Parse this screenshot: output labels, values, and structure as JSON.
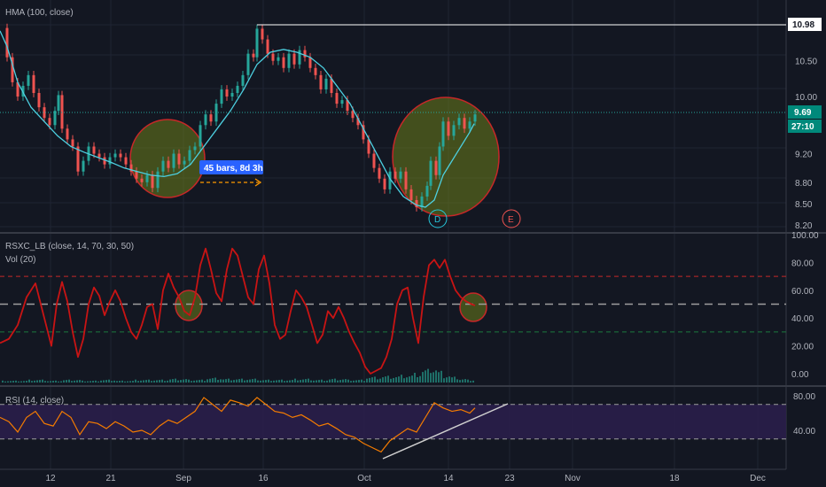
{
  "chart_data": [
    {
      "type": "candlestick",
      "pane": "price",
      "indicator_label": "HMA (100, close)",
      "y_ticks": [
        "8.20",
        "8.50",
        "8.80",
        "9.20",
        "10.00",
        "10.50"
      ],
      "x_ticks": [
        "12",
        "21",
        "Sep",
        "16",
        "Oct",
        "14",
        "23",
        "Nov",
        "18",
        "Dec"
      ],
      "price_high_tag": "10.98",
      "last_price_tag": "9.69",
      "countdown_tag": "27:10",
      "measure_label": "45 bars, 8d 3h",
      "markers": [
        "D",
        "E"
      ],
      "hma_points": [
        [
          0,
          10.92
        ],
        [
          8,
          10.7
        ],
        [
          20,
          10.2
        ],
        [
          35,
          9.85
        ],
        [
          50,
          9.65
        ],
        [
          65,
          9.45
        ],
        [
          80,
          9.3
        ],
        [
          95,
          9.22
        ],
        [
          110,
          9.15
        ],
        [
          125,
          9.08
        ],
        [
          140,
          9.0
        ],
        [
          155,
          8.95
        ],
        [
          170,
          8.9
        ],
        [
          185,
          8.88
        ],
        [
          200,
          8.92
        ],
        [
          215,
          9.05
        ],
        [
          230,
          9.3
        ],
        [
          245,
          9.55
        ],
        [
          260,
          9.8
        ],
        [
          275,
          10.1
        ],
        [
          290,
          10.45
        ],
        [
          305,
          10.62
        ],
        [
          320,
          10.66
        ],
        [
          335,
          10.62
        ],
        [
          350,
          10.55
        ],
        [
          365,
          10.4
        ],
        [
          380,
          10.15
        ],
        [
          395,
          9.9
        ],
        [
          410,
          9.55
        ],
        [
          425,
          9.2
        ],
        [
          440,
          8.85
        ],
        [
          455,
          8.6
        ],
        [
          470,
          8.48
        ],
        [
          480,
          8.45
        ],
        [
          490,
          8.55
        ],
        [
          500,
          8.9
        ],
        [
          515,
          9.2
        ],
        [
          530,
          9.5
        ],
        [
          535,
          9.62
        ]
      ],
      "close_points": [
        [
          2,
          10.96
        ],
        [
          8,
          10.55
        ],
        [
          14,
          10.2
        ],
        [
          20,
          10.0
        ],
        [
          26,
          10.15
        ],
        [
          32,
          10.3
        ],
        [
          38,
          10.05
        ],
        [
          44,
          9.85
        ],
        [
          50,
          9.7
        ],
        [
          56,
          9.6
        ],
        [
          62,
          9.8
        ],
        [
          66,
          10.02
        ],
        [
          70,
          9.55
        ],
        [
          76,
          9.4
        ],
        [
          82,
          9.3
        ],
        [
          88,
          8.95
        ],
        [
          94,
          9.1
        ],
        [
          100,
          9.3
        ],
        [
          106,
          9.2
        ],
        [
          112,
          9.15
        ],
        [
          118,
          9.05
        ],
        [
          124,
          9.15
        ],
        [
          130,
          9.2
        ],
        [
          136,
          9.15
        ],
        [
          142,
          9.05
        ],
        [
          148,
          8.95
        ],
        [
          154,
          8.85
        ],
        [
          160,
          8.8
        ],
        [
          166,
          8.9
        ],
        [
          172,
          8.72
        ],
        [
          178,
          8.95
        ],
        [
          184,
          9.1
        ],
        [
          190,
          9.0
        ],
        [
          196,
          9.2
        ],
        [
          202,
          9.05
        ],
        [
          208,
          9.1
        ],
        [
          214,
          9.25
        ],
        [
          220,
          9.3
        ],
        [
          226,
          9.6
        ],
        [
          232,
          9.75
        ],
        [
          238,
          9.65
        ],
        [
          244,
          9.9
        ],
        [
          250,
          10.1
        ],
        [
          256,
          10.0
        ],
        [
          262,
          10.05
        ],
        [
          268,
          10.15
        ],
        [
          274,
          10.3
        ],
        [
          280,
          10.6
        ],
        [
          286,
          10.55
        ],
        [
          290,
          10.95
        ],
        [
          296,
          10.8
        ],
        [
          302,
          10.6
        ],
        [
          308,
          10.5
        ],
        [
          314,
          10.55
        ],
        [
          320,
          10.4
        ],
        [
          326,
          10.6
        ],
        [
          332,
          10.45
        ],
        [
          338,
          10.65
        ],
        [
          344,
          10.55
        ],
        [
          350,
          10.4
        ],
        [
          356,
          10.3
        ],
        [
          362,
          10.1
        ],
        [
          368,
          10.25
        ],
        [
          374,
          10.05
        ],
        [
          380,
          9.9
        ],
        [
          386,
          9.95
        ],
        [
          392,
          9.8
        ],
        [
          398,
          9.7
        ],
        [
          404,
          9.6
        ],
        [
          410,
          9.4
        ],
        [
          416,
          9.2
        ],
        [
          422,
          9.0
        ],
        [
          428,
          8.85
        ],
        [
          434,
          8.7
        ],
        [
          440,
          8.95
        ],
        [
          446,
          8.85
        ],
        [
          452,
          8.95
        ],
        [
          458,
          8.7
        ],
        [
          464,
          8.55
        ],
        [
          470,
          8.45
        ],
        [
          476,
          8.6
        ],
        [
          482,
          8.75
        ],
        [
          486,
          9.1
        ],
        [
          492,
          8.9
        ],
        [
          496,
          9.3
        ],
        [
          500,
          9.65
        ],
        [
          506,
          9.45
        ],
        [
          512,
          9.6
        ],
        [
          518,
          9.7
        ],
        [
          524,
          9.55
        ],
        [
          530,
          9.65
        ],
        [
          536,
          9.75
        ]
      ]
    },
    {
      "type": "line",
      "pane": "oscillator",
      "indicator_label": "RSXC_LB (close, 14, 70, 30, 50)",
      "volume_label": "Vol (20)",
      "y_ticks": [
        "100.00",
        "80.00",
        "60.00",
        "40.00",
        "20.00",
        "0.00"
      ],
      "levels": [
        70,
        50,
        30
      ],
      "values": [
        [
          0,
          22
        ],
        [
          10,
          25
        ],
        [
          20,
          35
        ],
        [
          30,
          55
        ],
        [
          40,
          65
        ],
        [
          46,
          50
        ],
        [
          52,
          35
        ],
        [
          58,
          20
        ],
        [
          64,
          50
        ],
        [
          70,
          66
        ],
        [
          76,
          52
        ],
        [
          82,
          30
        ],
        [
          88,
          12
        ],
        [
          94,
          25
        ],
        [
          100,
          50
        ],
        [
          106,
          62
        ],
        [
          112,
          56
        ],
        [
          118,
          42
        ],
        [
          124,
          52
        ],
        [
          130,
          60
        ],
        [
          136,
          52
        ],
        [
          142,
          40
        ],
        [
          148,
          30
        ],
        [
          154,
          25
        ],
        [
          160,
          35
        ],
        [
          166,
          48
        ],
        [
          172,
          50
        ],
        [
          178,
          32
        ],
        [
          184,
          60
        ],
        [
          190,
          72
        ],
        [
          196,
          62
        ],
        [
          202,
          55
        ],
        [
          208,
          45
        ],
        [
          214,
          42
        ],
        [
          220,
          55
        ],
        [
          226,
          78
        ],
        [
          232,
          90
        ],
        [
          238,
          75
        ],
        [
          244,
          58
        ],
        [
          250,
          52
        ],
        [
          256,
          75
        ],
        [
          262,
          90
        ],
        [
          268,
          85
        ],
        [
          274,
          70
        ],
        [
          280,
          55
        ],
        [
          286,
          50
        ],
        [
          292,
          75
        ],
        [
          298,
          85
        ],
        [
          304,
          65
        ],
        [
          310,
          35
        ],
        [
          316,
          25
        ],
        [
          322,
          28
        ],
        [
          328,
          45
        ],
        [
          334,
          60
        ],
        [
          340,
          55
        ],
        [
          346,
          48
        ],
        [
          352,
          35
        ],
        [
          358,
          22
        ],
        [
          364,
          28
        ],
        [
          370,
          45
        ],
        [
          376,
          40
        ],
        [
          382,
          48
        ],
        [
          388,
          40
        ],
        [
          394,
          30
        ],
        [
          400,
          22
        ],
        [
          406,
          15
        ],
        [
          412,
          5
        ],
        [
          418,
          0
        ],
        [
          424,
          2
        ],
        [
          430,
          4
        ],
        [
          436,
          12
        ],
        [
          442,
          25
        ],
        [
          448,
          50
        ],
        [
          454,
          60
        ],
        [
          460,
          62
        ],
        [
          466,
          40
        ],
        [
          472,
          22
        ],
        [
          478,
          55
        ],
        [
          484,
          78
        ],
        [
          490,
          82
        ],
        [
          496,
          76
        ],
        [
          502,
          82
        ],
        [
          508,
          70
        ],
        [
          514,
          60
        ],
        [
          520,
          55
        ],
        [
          526,
          52
        ],
        [
          532,
          50
        ],
        [
          536,
          49
        ]
      ],
      "volume_bars": [
        [
          20,
          2
        ],
        [
          40,
          3
        ],
        [
          60,
          2
        ],
        [
          80,
          3
        ],
        [
          100,
          2
        ],
        [
          120,
          3
        ],
        [
          140,
          2
        ],
        [
          160,
          3
        ],
        [
          180,
          3
        ],
        [
          200,
          4
        ],
        [
          220,
          3
        ],
        [
          240,
          5
        ],
        [
          260,
          4
        ],
        [
          280,
          4
        ],
        [
          300,
          3
        ],
        [
          320,
          3
        ],
        [
          340,
          4
        ],
        [
          360,
          3
        ],
        [
          380,
          4
        ],
        [
          400,
          3
        ],
        [
          420,
          6
        ],
        [
          440,
          7
        ],
        [
          460,
          8
        ],
        [
          470,
          10
        ],
        [
          480,
          14
        ],
        [
          484,
          18
        ],
        [
          490,
          16
        ],
        [
          496,
          12
        ],
        [
          502,
          8
        ],
        [
          510,
          6
        ],
        [
          520,
          4
        ],
        [
          530,
          3
        ]
      ]
    },
    {
      "type": "line",
      "pane": "rsi",
      "indicator_label": "RSI (14, close)",
      "y_ticks": [
        "80.00",
        "40.00"
      ],
      "levels": [
        70,
        30
      ],
      "values": [
        [
          0,
          55
        ],
        [
          10,
          50
        ],
        [
          20,
          38
        ],
        [
          30,
          55
        ],
        [
          40,
          62
        ],
        [
          50,
          48
        ],
        [
          60,
          45
        ],
        [
          70,
          62
        ],
        [
          80,
          55
        ],
        [
          90,
          35
        ],
        [
          100,
          50
        ],
        [
          110,
          48
        ],
        [
          120,
          42
        ],
        [
          130,
          50
        ],
        [
          140,
          45
        ],
        [
          150,
          38
        ],
        [
          160,
          40
        ],
        [
          170,
          35
        ],
        [
          180,
          45
        ],
        [
          190,
          52
        ],
        [
          200,
          48
        ],
        [
          210,
          55
        ],
        [
          220,
          62
        ],
        [
          230,
          78
        ],
        [
          240,
          70
        ],
        [
          250,
          62
        ],
        [
          260,
          75
        ],
        [
          270,
          72
        ],
        [
          280,
          68
        ],
        [
          290,
          78
        ],
        [
          300,
          70
        ],
        [
          310,
          62
        ],
        [
          320,
          60
        ],
        [
          330,
          55
        ],
        [
          340,
          58
        ],
        [
          350,
          52
        ],
        [
          360,
          45
        ],
        [
          370,
          48
        ],
        [
          380,
          42
        ],
        [
          390,
          35
        ],
        [
          400,
          32
        ],
        [
          410,
          25
        ],
        [
          420,
          20
        ],
        [
          430,
          15
        ],
        [
          440,
          28
        ],
        [
          450,
          35
        ],
        [
          460,
          42
        ],
        [
          470,
          38
        ],
        [
          480,
          55
        ],
        [
          490,
          72
        ],
        [
          500,
          66
        ],
        [
          510,
          62
        ],
        [
          520,
          64
        ],
        [
          530,
          60
        ],
        [
          536,
          66
        ]
      ]
    }
  ],
  "colors": {
    "background": "#131722",
    "candle_up": "#26a69a",
    "candle_down": "#ef5350",
    "hma": "#4dd0e1",
    "oscillator": "#c81414",
    "rsi": "#f57c00",
    "rsi_band": "#2a1e4a",
    "ellipse_fill": "#6b7d1a",
    "ellipse_stroke": "#c62828",
    "measure_box": "#2962ff",
    "last_price_box": "#00897b"
  }
}
